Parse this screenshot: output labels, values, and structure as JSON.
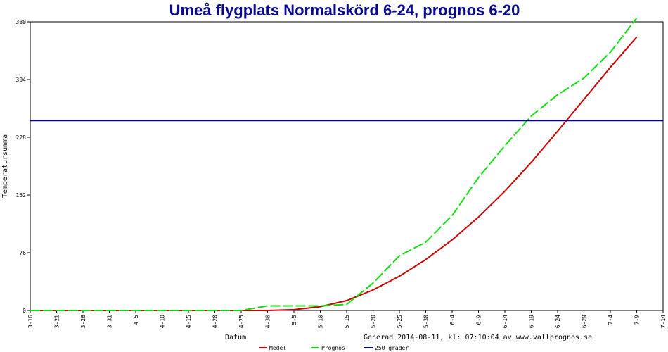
{
  "chart_data": {
    "type": "line",
    "title": "Umeå flygplats Normalskörd 6-24, prognos 6-20",
    "xlabel": "Datum",
    "ylabel": "Temperatursumma",
    "ylim": [
      0,
      380
    ],
    "yticks": [
      0,
      76,
      152,
      228,
      304,
      380
    ],
    "categories": [
      "3-16",
      "3-21",
      "3-26",
      "3-31",
      "4-5",
      "4-10",
      "4-15",
      "4-20",
      "4-25",
      "4-30",
      "5-5",
      "5-10",
      "5-15",
      "5-20",
      "5-25",
      "5-30",
      "6-4",
      "6-9",
      "6-14",
      "6-19",
      "6-24",
      "6-29",
      "7-4",
      "7-9",
      "7-14"
    ],
    "grid": false,
    "legend_position": "bottom",
    "footnote": "Generad 2014-08-11, kl: 07:10:04 av www.vallprognos.se",
    "series": [
      {
        "name": "Medel",
        "color": "#cc0000",
        "style": "solid",
        "x": [
          "3-16",
          "3-21",
          "3-26",
          "3-31",
          "4-5",
          "4-10",
          "4-15",
          "4-20",
          "4-25",
          "4-30",
          "5-5",
          "5-10",
          "5-15",
          "5-20",
          "5-25",
          "5-30",
          "6-4",
          "6-9",
          "6-14",
          "6-19",
          "6-24",
          "6-29",
          "7-4",
          "7-9"
        ],
        "values": [
          0,
          0,
          0,
          0,
          0,
          0,
          0,
          0,
          0,
          0,
          1,
          5,
          13,
          27,
          45,
          67,
          93,
          123,
          157,
          195,
          236,
          278,
          320,
          360
        ]
      },
      {
        "name": "Prognos",
        "color": "#11dd11",
        "style": "dashed",
        "x": [
          "3-16",
          "3-21",
          "3-26",
          "3-31",
          "4-5",
          "4-10",
          "4-15",
          "4-20",
          "4-25",
          "4-30",
          "5-5",
          "5-10",
          "5-15",
          "5-20",
          "5-25",
          "5-30",
          "6-4",
          "6-9",
          "6-14",
          "6-19",
          "6-24",
          "6-29",
          "7-4",
          "7-9"
        ],
        "values": [
          0,
          0,
          0,
          0,
          0,
          0,
          0,
          0,
          0,
          6,
          6,
          6,
          8,
          36,
          72,
          90,
          125,
          175,
          217,
          256,
          284,
          306,
          340,
          385
        ]
      },
      {
        "name": "250 grader",
        "color": "#00008b",
        "style": "solid",
        "x": [
          "3-16",
          "7-14"
        ],
        "values": [
          250,
          250
        ]
      }
    ]
  }
}
